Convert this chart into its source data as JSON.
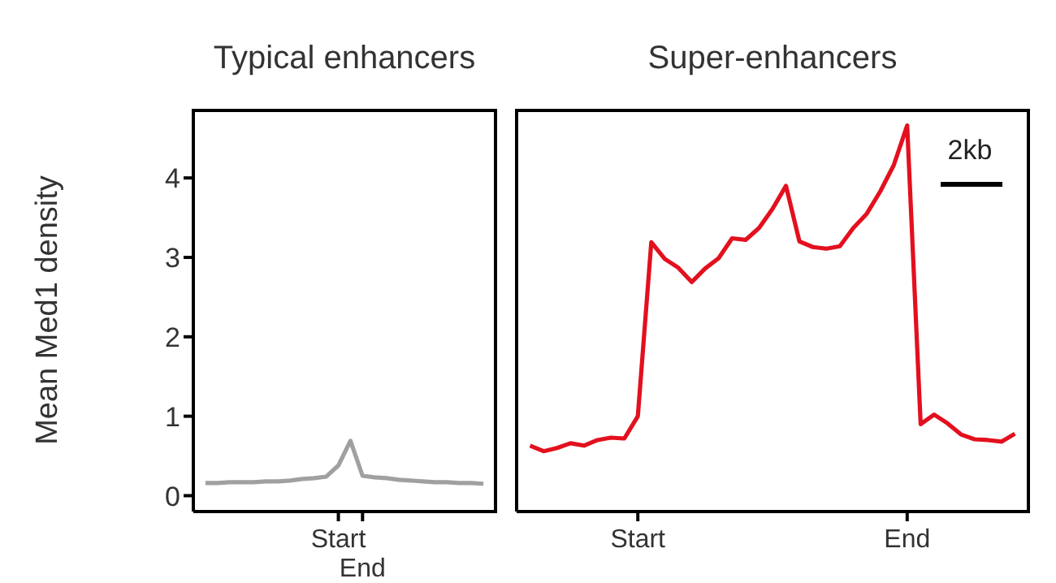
{
  "chart_data": [
    {
      "type": "line",
      "title": "Typical enhancers",
      "ylabel": "Mean Med1 density",
      "categories": [
        null,
        null,
        null,
        null,
        null,
        null,
        null,
        null,
        null,
        null,
        null,
        "Start",
        null,
        "End",
        null,
        null,
        null,
        null,
        null,
        null,
        null,
        null,
        null,
        null
      ],
      "series": [
        {
          "color": "#a0a0a0",
          "values": [
            0.16,
            0.16,
            0.17,
            0.17,
            0.17,
            0.18,
            0.18,
            0.19,
            0.21,
            0.22,
            0.24,
            0.38,
            0.69,
            0.25,
            0.23,
            0.22,
            0.2,
            0.19,
            0.18,
            0.17,
            0.17,
            0.16,
            0.16,
            0.15
          ]
        }
      ],
      "ylim": [
        -0.2,
        4.85
      ],
      "yticks": [
        0,
        1,
        2,
        3,
        4
      ]
    },
    {
      "type": "line",
      "title": "Super-enhancers",
      "tick_labels": "x",
      "annotations": [
        "2kb"
      ],
      "categories": [
        null,
        null,
        null,
        null,
        null,
        null,
        null,
        null,
        "Start",
        null,
        null,
        null,
        null,
        null,
        null,
        null,
        null,
        null,
        null,
        null,
        null,
        null,
        null,
        null,
        null,
        null,
        null,
        null,
        "End",
        null,
        null,
        null,
        null,
        null,
        null,
        null,
        null
      ],
      "series": [
        {
          "color": "#e3101e",
          "values": [
            0.63,
            0.56,
            0.6,
            0.66,
            0.63,
            0.7,
            0.73,
            0.72,
            1.0,
            3.19,
            2.98,
            2.87,
            2.69,
            2.86,
            2.99,
            3.24,
            3.22,
            3.37,
            3.61,
            3.9,
            3.2,
            3.13,
            3.11,
            3.14,
            3.37,
            3.55,
            3.83,
            4.16,
            4.66,
            0.9,
            1.02,
            0.91,
            0.77,
            0.71,
            0.7,
            0.68,
            0.78
          ]
        }
      ],
      "ylim": [
        -0.2,
        4.85
      ]
    }
  ]
}
